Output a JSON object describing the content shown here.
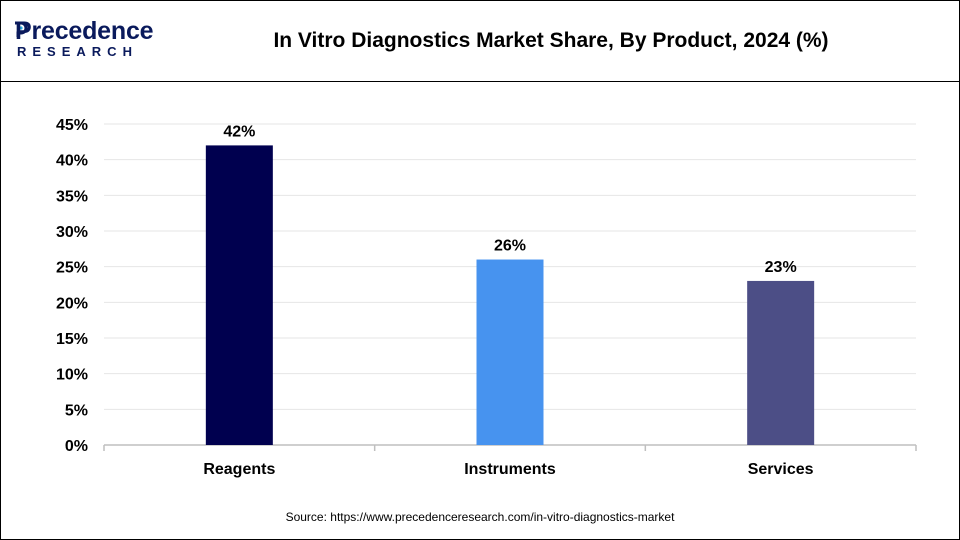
{
  "header": {
    "title": "In Vitro Diagnostics Market Share, By Product, 2024 (%)",
    "logo_top": "Precedence",
    "logo_bottom": "RESEARCH"
  },
  "footer": {
    "source": "Source: https://www.precedenceresearch.com/in-vitro-diagnostics-market"
  },
  "chart_data": {
    "type": "bar",
    "title": "In Vitro Diagnostics Market Share, By Product, 2024 (%)",
    "categories": [
      "Reagents",
      "Instruments",
      "Services"
    ],
    "values": [
      42,
      26,
      23
    ],
    "data_labels": [
      "42%",
      "26%",
      "23%"
    ],
    "bar_colors": [
      "#00004f",
      "#4793ef",
      "#4c4e86"
    ],
    "ylim": [
      0,
      45
    ],
    "yticks": [
      "0%",
      "5%",
      "10%",
      "15%",
      "20%",
      "25%",
      "30%",
      "35%",
      "40%",
      "45%"
    ],
    "grid": true,
    "legend": "none",
    "xlabel": "",
    "ylabel": ""
  }
}
